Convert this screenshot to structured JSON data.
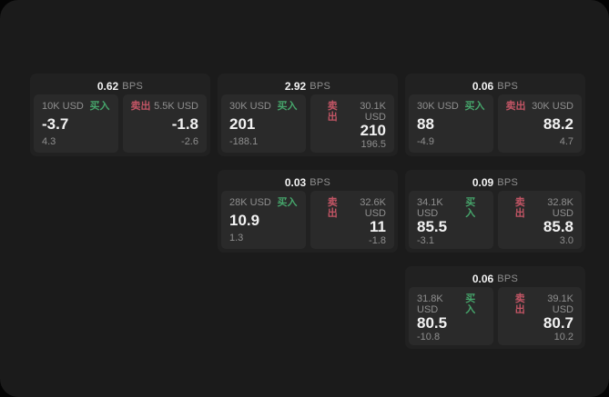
{
  "labels": {
    "bps_suffix": "BPS",
    "buy": "买入",
    "sell": "卖出"
  },
  "colors": {
    "page_bg": "#1b1b1b",
    "card_bg": "#212121",
    "panel_bg": "#2a2a2a",
    "value_text": "#f2f2f2",
    "muted_text": "#8f8f8f",
    "buy_green": "#46a56b",
    "sell_red": "#c25565"
  },
  "cards": [
    {
      "bps_value": "0.62",
      "buy_amount": "10K USD",
      "buy_value": "-3.7",
      "buy_delta": "4.3",
      "sell_amount": "5.5K USD",
      "sell_value": "-1.8",
      "sell_delta": "-2.6"
    },
    {
      "bps_value": "2.92",
      "buy_amount": "30K USD",
      "buy_value": "201",
      "buy_delta": "-188.1",
      "sell_amount": "30.1K USD",
      "sell_value": "210",
      "sell_delta": "196.5"
    },
    {
      "bps_value": "0.06",
      "buy_amount": "30K USD",
      "buy_value": "88",
      "buy_delta": "-4.9",
      "sell_amount": "30K USD",
      "sell_value": "88.2",
      "sell_delta": "4.7"
    },
    {
      "bps_value": "0.03",
      "buy_amount": "28K USD",
      "buy_value": "10.9",
      "buy_delta": "1.3",
      "sell_amount": "32.6K USD",
      "sell_value": "11",
      "sell_delta": "-1.8"
    },
    {
      "bps_value": "0.09",
      "buy_amount": "34.1K USD",
      "buy_value": "85.5",
      "buy_delta": "-3.1",
      "sell_amount": "32.8K USD",
      "sell_value": "85.8",
      "sell_delta": "3.0"
    },
    {
      "bps_value": "0.06",
      "buy_amount": "31.8K USD",
      "buy_value": "80.5",
      "buy_delta": "-10.8",
      "sell_amount": "39.1K USD",
      "sell_value": "80.7",
      "sell_delta": "10.2"
    }
  ]
}
